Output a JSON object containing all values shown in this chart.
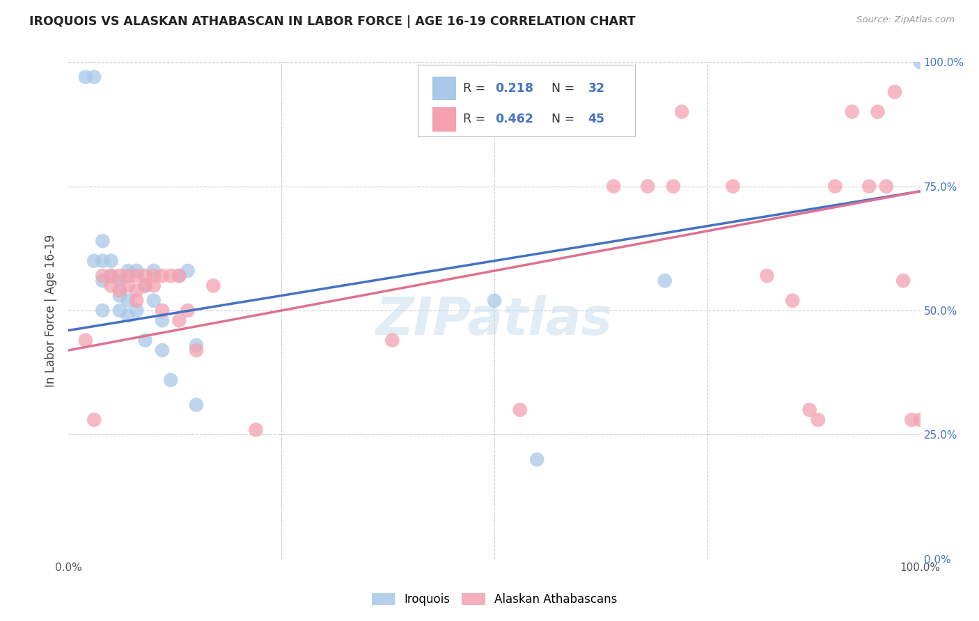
{
  "title": "IROQUOIS VS ALASKAN ATHABASCAN IN LABOR FORCE | AGE 16-19 CORRELATION CHART",
  "source": "Source: ZipAtlas.com",
  "ylabel": "In Labor Force | Age 16-19",
  "watermark": "ZIPatlas",
  "blue_color": "#a8c8e8",
  "pink_color": "#f4a0b0",
  "line_blue": "#4472c4",
  "line_pink": "#e07090",
  "iroquois_x": [
    0.02,
    0.03,
    0.03,
    0.04,
    0.04,
    0.04,
    0.04,
    0.05,
    0.05,
    0.06,
    0.06,
    0.06,
    0.07,
    0.07,
    0.07,
    0.08,
    0.08,
    0.09,
    0.09,
    0.1,
    0.1,
    0.11,
    0.11,
    0.12,
    0.13,
    0.14,
    0.15,
    0.15,
    0.5,
    0.55,
    0.7,
    1.0
  ],
  "iroquois_y": [
    0.97,
    0.97,
    0.6,
    0.64,
    0.6,
    0.56,
    0.5,
    0.6,
    0.57,
    0.56,
    0.53,
    0.5,
    0.58,
    0.52,
    0.49,
    0.58,
    0.5,
    0.55,
    0.44,
    0.58,
    0.52,
    0.48,
    0.42,
    0.36,
    0.57,
    0.58,
    0.43,
    0.31,
    0.52,
    0.2,
    0.56,
    1.0
  ],
  "athabascan_x": [
    0.02,
    0.03,
    0.04,
    0.05,
    0.05,
    0.06,
    0.06,
    0.07,
    0.07,
    0.08,
    0.08,
    0.08,
    0.09,
    0.09,
    0.1,
    0.1,
    0.11,
    0.11,
    0.12,
    0.13,
    0.13,
    0.14,
    0.15,
    0.17,
    0.22,
    0.38,
    0.53,
    0.64,
    0.68,
    0.71,
    0.72,
    0.78,
    0.82,
    0.85,
    0.87,
    0.88,
    0.9,
    0.92,
    0.94,
    0.95,
    0.96,
    0.97,
    0.98,
    0.99,
    1.0
  ],
  "athabascan_y": [
    0.44,
    0.28,
    0.57,
    0.57,
    0.55,
    0.57,
    0.54,
    0.57,
    0.55,
    0.57,
    0.54,
    0.52,
    0.57,
    0.55,
    0.57,
    0.55,
    0.57,
    0.5,
    0.57,
    0.57,
    0.48,
    0.5,
    0.42,
    0.55,
    0.26,
    0.44,
    0.3,
    0.75,
    0.75,
    0.75,
    0.9,
    0.75,
    0.57,
    0.52,
    0.3,
    0.28,
    0.75,
    0.9,
    0.75,
    0.9,
    0.75,
    0.94,
    0.56,
    0.28,
    0.28
  ],
  "blue_line_x0": 0.0,
  "blue_line_y0": 0.46,
  "blue_line_x1": 1.0,
  "blue_line_y1": 0.74,
  "pink_line_x0": 0.0,
  "pink_line_y0": 0.42,
  "pink_line_x1": 1.0,
  "pink_line_y1": 0.74,
  "xlim": [
    0,
    1
  ],
  "ylim": [
    0,
    1
  ],
  "grid_color": "#cccccc",
  "background_color": "#ffffff",
  "accent_blue": "#4472c4"
}
